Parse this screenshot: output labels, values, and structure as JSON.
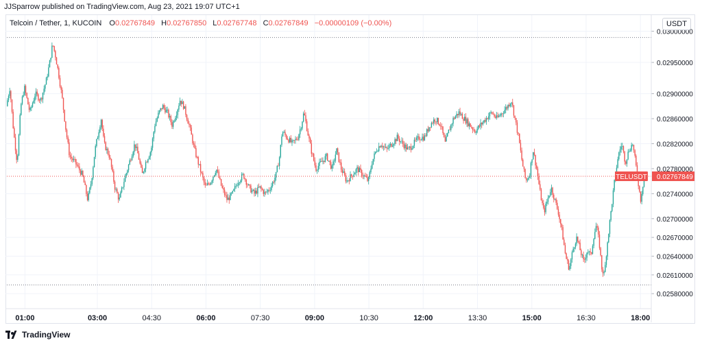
{
  "header": {
    "published": "JJSparrow published on TradingView.com, Aug 23, 2021 19:07 UTC+1"
  },
  "legend": {
    "symbol": "Telcoin / Tether, 1, KUCOIN",
    "o_label": "O",
    "o_value": "0.02767849",
    "h_label": "H",
    "h_value": "0.02767850",
    "l_label": "L",
    "l_value": "0.02767748",
    "c_label": "C",
    "c_value": "0.02767849",
    "change": "−0.00000109 (−0.00%)"
  },
  "currency_label": "USDT",
  "footer": {
    "brand": "TradingView"
  },
  "colors": {
    "up": "#26a69a",
    "down": "#ef5350",
    "grid": "#f0f3fa",
    "axis_text": "#131722"
  },
  "chart_data": {
    "type": "candlestick",
    "title": "Telcoin / Tether, 1, KUCOIN",
    "x_unit": "hours (clock time)",
    "x_range": [
      0.5,
      18.3
    ],
    "ylim": [
      0.02556,
      0.03006
    ],
    "x_ticks": [
      {
        "t": 1.0,
        "label": "01:00",
        "bold": true
      },
      {
        "t": 3.0,
        "label": "03:00",
        "bold": true
      },
      {
        "t": 4.5,
        "label": "04:30",
        "bold": false
      },
      {
        "t": 6.0,
        "label": "06:00",
        "bold": true
      },
      {
        "t": 7.5,
        "label": "07:30",
        "bold": false
      },
      {
        "t": 9.0,
        "label": "09:00",
        "bold": true
      },
      {
        "t": 10.5,
        "label": "10:30",
        "bold": false
      },
      {
        "t": 12.0,
        "label": "12:00",
        "bold": true
      },
      {
        "t": 13.5,
        "label": "13:30",
        "bold": false
      },
      {
        "t": 15.0,
        "label": "15:00",
        "bold": true
      },
      {
        "t": 16.5,
        "label": "16:30",
        "bold": false
      },
      {
        "t": 18.0,
        "label": "18:00",
        "bold": true
      }
    ],
    "y_ticks": [
      {
        "v": 0.03,
        "label": "0.03000000"
      },
      {
        "v": 0.0295,
        "label": "0.02950000"
      },
      {
        "v": 0.029,
        "label": "0.02900000"
      },
      {
        "v": 0.0286,
        "label": "0.02860000"
      },
      {
        "v": 0.0282,
        "label": "0.02820000"
      },
      {
        "v": 0.0278,
        "label": "0.02780000"
      },
      {
        "v": 0.0274,
        "label": "0.02740000"
      },
      {
        "v": 0.027,
        "label": "0.02700000"
      },
      {
        "v": 0.0267,
        "label": "0.02670000"
      },
      {
        "v": 0.0264,
        "label": "0.02640000"
      },
      {
        "v": 0.0261,
        "label": "0.02610000"
      },
      {
        "v": 0.0258,
        "label": "0.02580000"
      }
    ],
    "high_line": 0.0299,
    "low_line": 0.02594,
    "last_price": {
      "symbol": "TELUSDT",
      "value": 0.02767849,
      "label": "0.02767849"
    },
    "price_path": [
      [
        0.5,
        0.0288
      ],
      [
        0.6,
        0.0291
      ],
      [
        0.7,
        0.0284
      ],
      [
        0.8,
        0.0279
      ],
      [
        0.9,
        0.0288
      ],
      [
        1.0,
        0.0291
      ],
      [
        1.15,
        0.0287
      ],
      [
        1.3,
        0.029
      ],
      [
        1.45,
        0.0289
      ],
      [
        1.6,
        0.0292
      ],
      [
        1.7,
        0.0295
      ],
      [
        1.78,
        0.0298
      ],
      [
        1.86,
        0.0296
      ],
      [
        1.95,
        0.0293
      ],
      [
        2.05,
        0.0289
      ],
      [
        2.15,
        0.0284
      ],
      [
        2.25,
        0.028
      ],
      [
        2.4,
        0.0279
      ],
      [
        2.6,
        0.0277
      ],
      [
        2.75,
        0.0273
      ],
      [
        2.85,
        0.0276
      ],
      [
        2.95,
        0.0281
      ],
      [
        3.05,
        0.0284
      ],
      [
        3.12,
        0.0286
      ],
      [
        3.2,
        0.0282
      ],
      [
        3.35,
        0.028
      ],
      [
        3.5,
        0.0275
      ],
      [
        3.62,
        0.0273
      ],
      [
        3.75,
        0.0276
      ],
      [
        3.9,
        0.0279
      ],
      [
        4.05,
        0.0282
      ],
      [
        4.15,
        0.028
      ],
      [
        4.25,
        0.0277
      ],
      [
        4.35,
        0.0279
      ],
      [
        4.5,
        0.0281
      ],
      [
        4.6,
        0.0285
      ],
      [
        4.72,
        0.0287
      ],
      [
        4.82,
        0.0288
      ],
      [
        4.95,
        0.0287
      ],
      [
        5.08,
        0.0285
      ],
      [
        5.2,
        0.0287
      ],
      [
        5.3,
        0.0289
      ],
      [
        5.4,
        0.0288
      ],
      [
        5.55,
        0.0285
      ],
      [
        5.7,
        0.0281
      ],
      [
        5.85,
        0.0278
      ],
      [
        6.0,
        0.0275
      ],
      [
        6.15,
        0.0276
      ],
      [
        6.3,
        0.0278
      ],
      [
        6.45,
        0.0275
      ],
      [
        6.6,
        0.0273
      ],
      [
        6.75,
        0.0274
      ],
      [
        6.9,
        0.0276
      ],
      [
        7.05,
        0.0277
      ],
      [
        7.2,
        0.0275
      ],
      [
        7.35,
        0.0274
      ],
      [
        7.5,
        0.0275
      ],
      [
        7.65,
        0.0274
      ],
      [
        7.8,
        0.0275
      ],
      [
        7.95,
        0.0277
      ],
      [
        8.05,
        0.028
      ],
      [
        8.12,
        0.0284
      ],
      [
        8.25,
        0.0283
      ],
      [
        8.4,
        0.0282
      ],
      [
        8.55,
        0.0283
      ],
      [
        8.65,
        0.0285
      ],
      [
        8.72,
        0.0287
      ],
      [
        8.82,
        0.0284
      ],
      [
        8.92,
        0.0281
      ],
      [
        9.05,
        0.0278
      ],
      [
        9.2,
        0.0279
      ],
      [
        9.35,
        0.028
      ],
      [
        9.5,
        0.0278
      ],
      [
        9.62,
        0.0281
      ],
      [
        9.75,
        0.0278
      ],
      [
        9.9,
        0.0276
      ],
      [
        10.05,
        0.0277
      ],
      [
        10.2,
        0.0278
      ],
      [
        10.35,
        0.0277
      ],
      [
        10.5,
        0.0276
      ],
      [
        10.6,
        0.0279
      ],
      [
        10.72,
        0.0281
      ],
      [
        10.85,
        0.0282
      ],
      [
        11.0,
        0.0281
      ],
      [
        11.15,
        0.0282
      ],
      [
        11.3,
        0.0283
      ],
      [
        11.45,
        0.0282
      ],
      [
        11.6,
        0.0281
      ],
      [
        11.75,
        0.0282
      ],
      [
        11.9,
        0.0283
      ],
      [
        12.05,
        0.0283
      ],
      [
        12.2,
        0.0285
      ],
      [
        12.35,
        0.0286
      ],
      [
        12.5,
        0.0285
      ],
      [
        12.62,
        0.0282
      ],
      [
        12.72,
        0.0284
      ],
      [
        12.85,
        0.0286
      ],
      [
        13.0,
        0.0287
      ],
      [
        13.15,
        0.0286
      ],
      [
        13.3,
        0.0285
      ],
      [
        13.45,
        0.0284
      ],
      [
        13.6,
        0.0285
      ],
      [
        13.75,
        0.0286
      ],
      [
        13.9,
        0.0287
      ],
      [
        14.05,
        0.0286
      ],
      [
        14.2,
        0.0287
      ],
      [
        14.35,
        0.0288
      ],
      [
        14.45,
        0.0289
      ],
      [
        14.55,
        0.0286
      ],
      [
        14.65,
        0.0283
      ],
      [
        14.75,
        0.0279
      ],
      [
        14.85,
        0.0276
      ],
      [
        14.95,
        0.0277
      ],
      [
        15.05,
        0.0281
      ],
      [
        15.15,
        0.0278
      ],
      [
        15.25,
        0.0274
      ],
      [
        15.35,
        0.0271
      ],
      [
        15.45,
        0.0273
      ],
      [
        15.55,
        0.0275
      ],
      [
        15.65,
        0.0273
      ],
      [
        15.75,
        0.0271
      ],
      [
        15.85,
        0.0268
      ],
      [
        15.95,
        0.0264
      ],
      [
        16.05,
        0.0262
      ],
      [
        16.15,
        0.0265
      ],
      [
        16.25,
        0.0267
      ],
      [
        16.35,
        0.0265
      ],
      [
        16.45,
        0.0263
      ],
      [
        16.55,
        0.0265
      ],
      [
        16.65,
        0.0264
      ],
      [
        16.72,
        0.0267
      ],
      [
        16.8,
        0.0269
      ],
      [
        16.88,
        0.0266
      ],
      [
        16.95,
        0.0262
      ],
      [
        17.02,
        0.0261
      ],
      [
        17.1,
        0.0266
      ],
      [
        17.2,
        0.0271
      ],
      [
        17.3,
        0.0276
      ],
      [
        17.4,
        0.028
      ],
      [
        17.5,
        0.0282
      ],
      [
        17.6,
        0.0279
      ],
      [
        17.7,
        0.0281
      ],
      [
        17.8,
        0.0282
      ],
      [
        17.88,
        0.0279
      ],
      [
        17.95,
        0.0276
      ],
      [
        18.02,
        0.0273
      ],
      [
        18.1,
        0.0276
      ],
      [
        18.18,
        0.0277
      ]
    ]
  }
}
